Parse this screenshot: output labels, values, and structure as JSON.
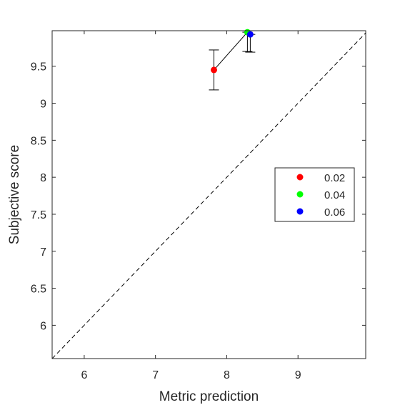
{
  "chart_data": {
    "type": "scatter",
    "title": "",
    "xlabel": "Metric prediction",
    "ylabel": "Subjective score",
    "xlim": [
      5.55,
      9.95
    ],
    "ylim": [
      5.55,
      9.98
    ],
    "xticks": [
      6,
      7,
      8,
      9
    ],
    "yticks": [
      6,
      6.5,
      7,
      7.5,
      8,
      8.5,
      9,
      9.5
    ],
    "xtick_labels": [
      "6",
      "7",
      "8",
      "9"
    ],
    "ytick_labels": [
      "6",
      "6.5",
      "7",
      "7.5",
      "8",
      "8.5",
      "9",
      "9.5"
    ],
    "grid": false,
    "legend_position": "right",
    "reference_line": {
      "style": "dashed",
      "from": [
        5.55,
        5.55
      ],
      "to": [
        9.95,
        9.95
      ]
    },
    "connecting_line": true,
    "series": [
      {
        "name": "0.02",
        "color": "#ff0000",
        "x": 7.82,
        "y": 9.45,
        "y_err_low": 9.18,
        "y_err_high": 9.72
      },
      {
        "name": "0.04",
        "color": "#00ff00",
        "x": 8.29,
        "y": 9.96,
        "y_err_low": 9.7,
        "y_err_high": 9.96
      },
      {
        "name": "0.06",
        "color": "#0000ff",
        "x": 8.33,
        "y": 9.93,
        "y_err_low": 9.69,
        "y_err_high": 9.93
      }
    ]
  }
}
